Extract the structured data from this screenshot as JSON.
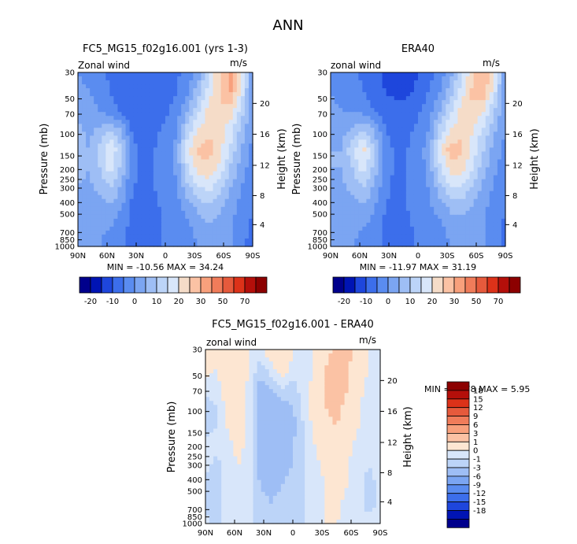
{
  "page_title": "ANN",
  "colors": {
    "scale_A": [
      "#00008c",
      "#0014b4",
      "#1e46dc",
      "#3c6eeb",
      "#5a8cf0",
      "#7ba5f2",
      "#9ebef5",
      "#bcd4f8",
      "#d8e6fa",
      "#f5dcc8",
      "#fbc2a4",
      "#f8a07c",
      "#f07c5a",
      "#e65a3c",
      "#dc3219",
      "#b40f0a",
      "#8c0000"
    ],
    "scale_B": [
      "#00008c",
      "#0014b4",
      "#1e46dc",
      "#3c6eeb",
      "#5a8cf0",
      "#7ba5f2",
      "#9ebef5",
      "#bcd4f8",
      "#d8e6fa",
      "#fde6d2",
      "#fbc2a4",
      "#f8a07c",
      "#f07c5a",
      "#e65a3c",
      "#dc3219",
      "#b40f0a",
      "#8c0000"
    ]
  },
  "chart_data": [
    {
      "type": "heatmap",
      "title": "FC5_MG15_f02g16.001 (yrs 1-3)",
      "variable_label": "Zonal wind",
      "units": "m/s",
      "ylabel": "Pressure (mb)",
      "ylabel_right": "Height (km)",
      "x_ticks": [
        "90N",
        "60N",
        "30N",
        "0",
        "30S",
        "60S",
        "90S"
      ],
      "y_ticks": [
        "30",
        "50",
        "70",
        "100",
        "150",
        "200",
        "250",
        "300",
        "400",
        "500",
        "700",
        "850",
        "1000"
      ],
      "y_ticks_right": [
        "20",
        "16",
        "12",
        "8",
        "4"
      ],
      "stats": "MIN = -10.56   MAX =  34.24",
      "colorbar_labels": [
        "-20",
        "-10",
        "0",
        "10",
        "20",
        "30",
        "50",
        "70"
      ],
      "values": [
        [
          0,
          -2,
          -4,
          -6,
          -8,
          -10,
          -10,
          -9,
          -8,
          -6,
          -3,
          2,
          14,
          25,
          33,
          20,
          0
        ],
        [
          2,
          0,
          -2,
          -5,
          -8,
          -10,
          -10,
          -9,
          -8,
          -5,
          -1,
          8,
          18,
          25,
          30,
          18,
          0
        ],
        [
          4,
          2,
          0,
          -3,
          -6,
          -9,
          -9,
          -8,
          -6,
          -3,
          5,
          14,
          22,
          25,
          22,
          12,
          0
        ],
        [
          6,
          4,
          6,
          10,
          5,
          -6,
          -7,
          -6,
          -4,
          -1,
          12,
          20,
          24,
          22,
          17,
          8,
          0
        ],
        [
          6,
          5,
          12,
          20,
          10,
          -4,
          -6,
          -5,
          -3,
          2,
          18,
          26,
          27,
          22,
          14,
          4,
          -2
        ],
        [
          6,
          5,
          10,
          17,
          8,
          -4,
          -6,
          -5,
          -3,
          1,
          14,
          22,
          24,
          18,
          9,
          2,
          -3
        ],
        [
          5,
          4,
          6,
          10,
          4,
          -5,
          -6,
          -5,
          -3,
          -1,
          8,
          14,
          16,
          12,
          5,
          0,
          -4
        ],
        [
          4,
          3,
          3,
          4,
          0,
          -6,
          -7,
          -6,
          -4,
          -2,
          2,
          6,
          9,
          6,
          2,
          -2,
          -5
        ],
        [
          3,
          2,
          1,
          0,
          -3,
          -7,
          -8,
          -6,
          -4,
          -3,
          -1,
          2,
          4,
          3,
          0,
          -3,
          -6
        ],
        [
          2,
          1,
          0,
          -2,
          -4,
          -7,
          -8,
          -6,
          -4,
          -3,
          -2,
          0,
          2,
          2,
          0,
          -4,
          -7
        ]
      ]
    },
    {
      "type": "heatmap",
      "title": "ERA40",
      "variable_label": "zonal wind",
      "units": "m/s",
      "ylabel": "Pressure (mb)",
      "ylabel_right": "Height (km)",
      "x_ticks": [
        "90N",
        "60N",
        "30N",
        "0",
        "30S",
        "60S",
        "90S"
      ],
      "y_ticks": [
        "30",
        "50",
        "70",
        "100",
        "150",
        "200",
        "250",
        "300",
        "400",
        "500",
        "700",
        "850",
        "1000"
      ],
      "y_ticks_right": [
        "20",
        "16",
        "12",
        "8",
        "4"
      ],
      "stats": "MIN = -11.97   MAX =  31.19",
      "colorbar_labels": [
        "-20",
        "-10",
        "0",
        "10",
        "20",
        "30",
        "50",
        "70"
      ],
      "values": [
        [
          -2,
          -3,
          -4,
          -6,
          -9,
          -11,
          -12,
          -12,
          -10,
          -7,
          -3,
          3,
          14,
          24,
          30,
          20,
          0
        ],
        [
          0,
          -2,
          -3,
          -5,
          -7,
          -10,
          -11,
          -11,
          -9,
          -5,
          0,
          8,
          18,
          26,
          28,
          17,
          0
        ],
        [
          2,
          0,
          0,
          -2,
          -5,
          -8,
          -9,
          -8,
          -6,
          -2,
          5,
          14,
          22,
          25,
          20,
          10,
          0
        ],
        [
          4,
          3,
          6,
          10,
          5,
          -5,
          -7,
          -6,
          -4,
          0,
          12,
          20,
          24,
          20,
          14,
          6,
          0
        ],
        [
          5,
          5,
          14,
          22,
          10,
          -3,
          -6,
          -5,
          -3,
          3,
          18,
          28,
          26,
          18,
          10,
          3,
          -2
        ],
        [
          5,
          5,
          10,
          17,
          8,
          -3,
          -6,
          -5,
          -3,
          2,
          14,
          22,
          22,
          15,
          7,
          1,
          -3
        ],
        [
          4,
          4,
          6,
          10,
          4,
          -4,
          -6,
          -5,
          -3,
          0,
          8,
          14,
          14,
          9,
          3,
          -1,
          -4
        ],
        [
          3,
          3,
          3,
          4,
          0,
          -5,
          -6,
          -5,
          -3,
          -1,
          2,
          6,
          7,
          4,
          1,
          -2,
          -5
        ],
        [
          2,
          2,
          1,
          0,
          -2,
          -6,
          -7,
          -6,
          -4,
          -2,
          -1,
          2,
          3,
          2,
          0,
          -3,
          -6
        ],
        [
          1,
          1,
          0,
          -1,
          -3,
          -6,
          -7,
          -6,
          -4,
          -3,
          -2,
          0,
          1,
          1,
          0,
          -3,
          -6
        ]
      ]
    },
    {
      "type": "heatmap",
      "title": "FC5_MG15_f02g16.001 - ERA40",
      "variable_label": "zonal wind",
      "units": "m/s",
      "ylabel": "Pressure (mb)",
      "ylabel_right": "Height (km)",
      "x_ticks": [
        "90N",
        "60N",
        "30N",
        "0",
        "30S",
        "60S",
        "90S"
      ],
      "y_ticks": [
        "30",
        "50",
        "70",
        "100",
        "150",
        "200",
        "250",
        "300",
        "400",
        "500",
        "700",
        "850",
        "1000"
      ],
      "y_ticks_right": [
        "20",
        "16",
        "12",
        "8",
        "4"
      ],
      "stats": "MIN =   -8.78   MAX =    5.95",
      "colorbar_labels": [
        "18",
        "15",
        "12",
        "9",
        "6",
        "3",
        "1",
        "0",
        "-1",
        "-3",
        "-6",
        "-9",
        "-12",
        "-15",
        "-18"
      ],
      "values": [
        [
          2,
          1.5,
          2,
          3,
          1,
          0.5,
          2,
          3,
          1,
          0.5,
          1,
          2,
          4,
          4,
          2,
          1,
          0.5
        ],
        [
          1.5,
          1,
          2,
          3,
          1,
          -0.5,
          0.5,
          2,
          0.5,
          0.5,
          1,
          3,
          4,
          3,
          1.5,
          1,
          0.5
        ],
        [
          0.5,
          0.5,
          1.5,
          2.5,
          0.5,
          -1.5,
          -1,
          0,
          -0.5,
          0.5,
          1.5,
          3,
          4,
          3,
          1.5,
          0.5,
          0.5
        ],
        [
          -0.5,
          0,
          1.5,
          2.5,
          0.5,
          -2,
          -2,
          -1.5,
          -1,
          0.5,
          1.5,
          3,
          3.5,
          2.5,
          1,
          0.5,
          0.5
        ],
        [
          -0.5,
          0,
          1,
          2,
          0.5,
          -2,
          -3,
          -2,
          -1.5,
          0,
          1.5,
          2.5,
          3,
          2,
          1,
          0.5,
          0.5
        ],
        [
          0.5,
          0.5,
          0.5,
          1.5,
          0.5,
          -2,
          -3,
          -2,
          -1,
          0,
          1,
          2,
          2,
          1.5,
          0.5,
          0.5,
          0.5
        ],
        [
          0.5,
          -0.5,
          0.5,
          1,
          0.5,
          -1.5,
          -2,
          -1.5,
          -1,
          0,
          0.5,
          1.5,
          2,
          1,
          0.5,
          0,
          0.5
        ],
        [
          -0.5,
          -0.5,
          0.5,
          1,
          0.5,
          -1,
          -1.5,
          -1,
          -0.5,
          0,
          0.5,
          1,
          1.5,
          1,
          0.5,
          -0.5,
          0.5
        ],
        [
          -0.5,
          -0.5,
          0.5,
          1,
          0.5,
          -0.5,
          -1,
          -0.5,
          -0.5,
          0,
          0.5,
          1,
          1.5,
          0.5,
          0.5,
          -0.5,
          0.5
        ],
        [
          0.5,
          -0.5,
          0.5,
          1,
          0.5,
          -0.5,
          -1,
          -0.5,
          -0.5,
          0,
          0.5,
          1,
          1,
          0.5,
          0.5,
          0.5,
          0.5
        ]
      ]
    }
  ]
}
